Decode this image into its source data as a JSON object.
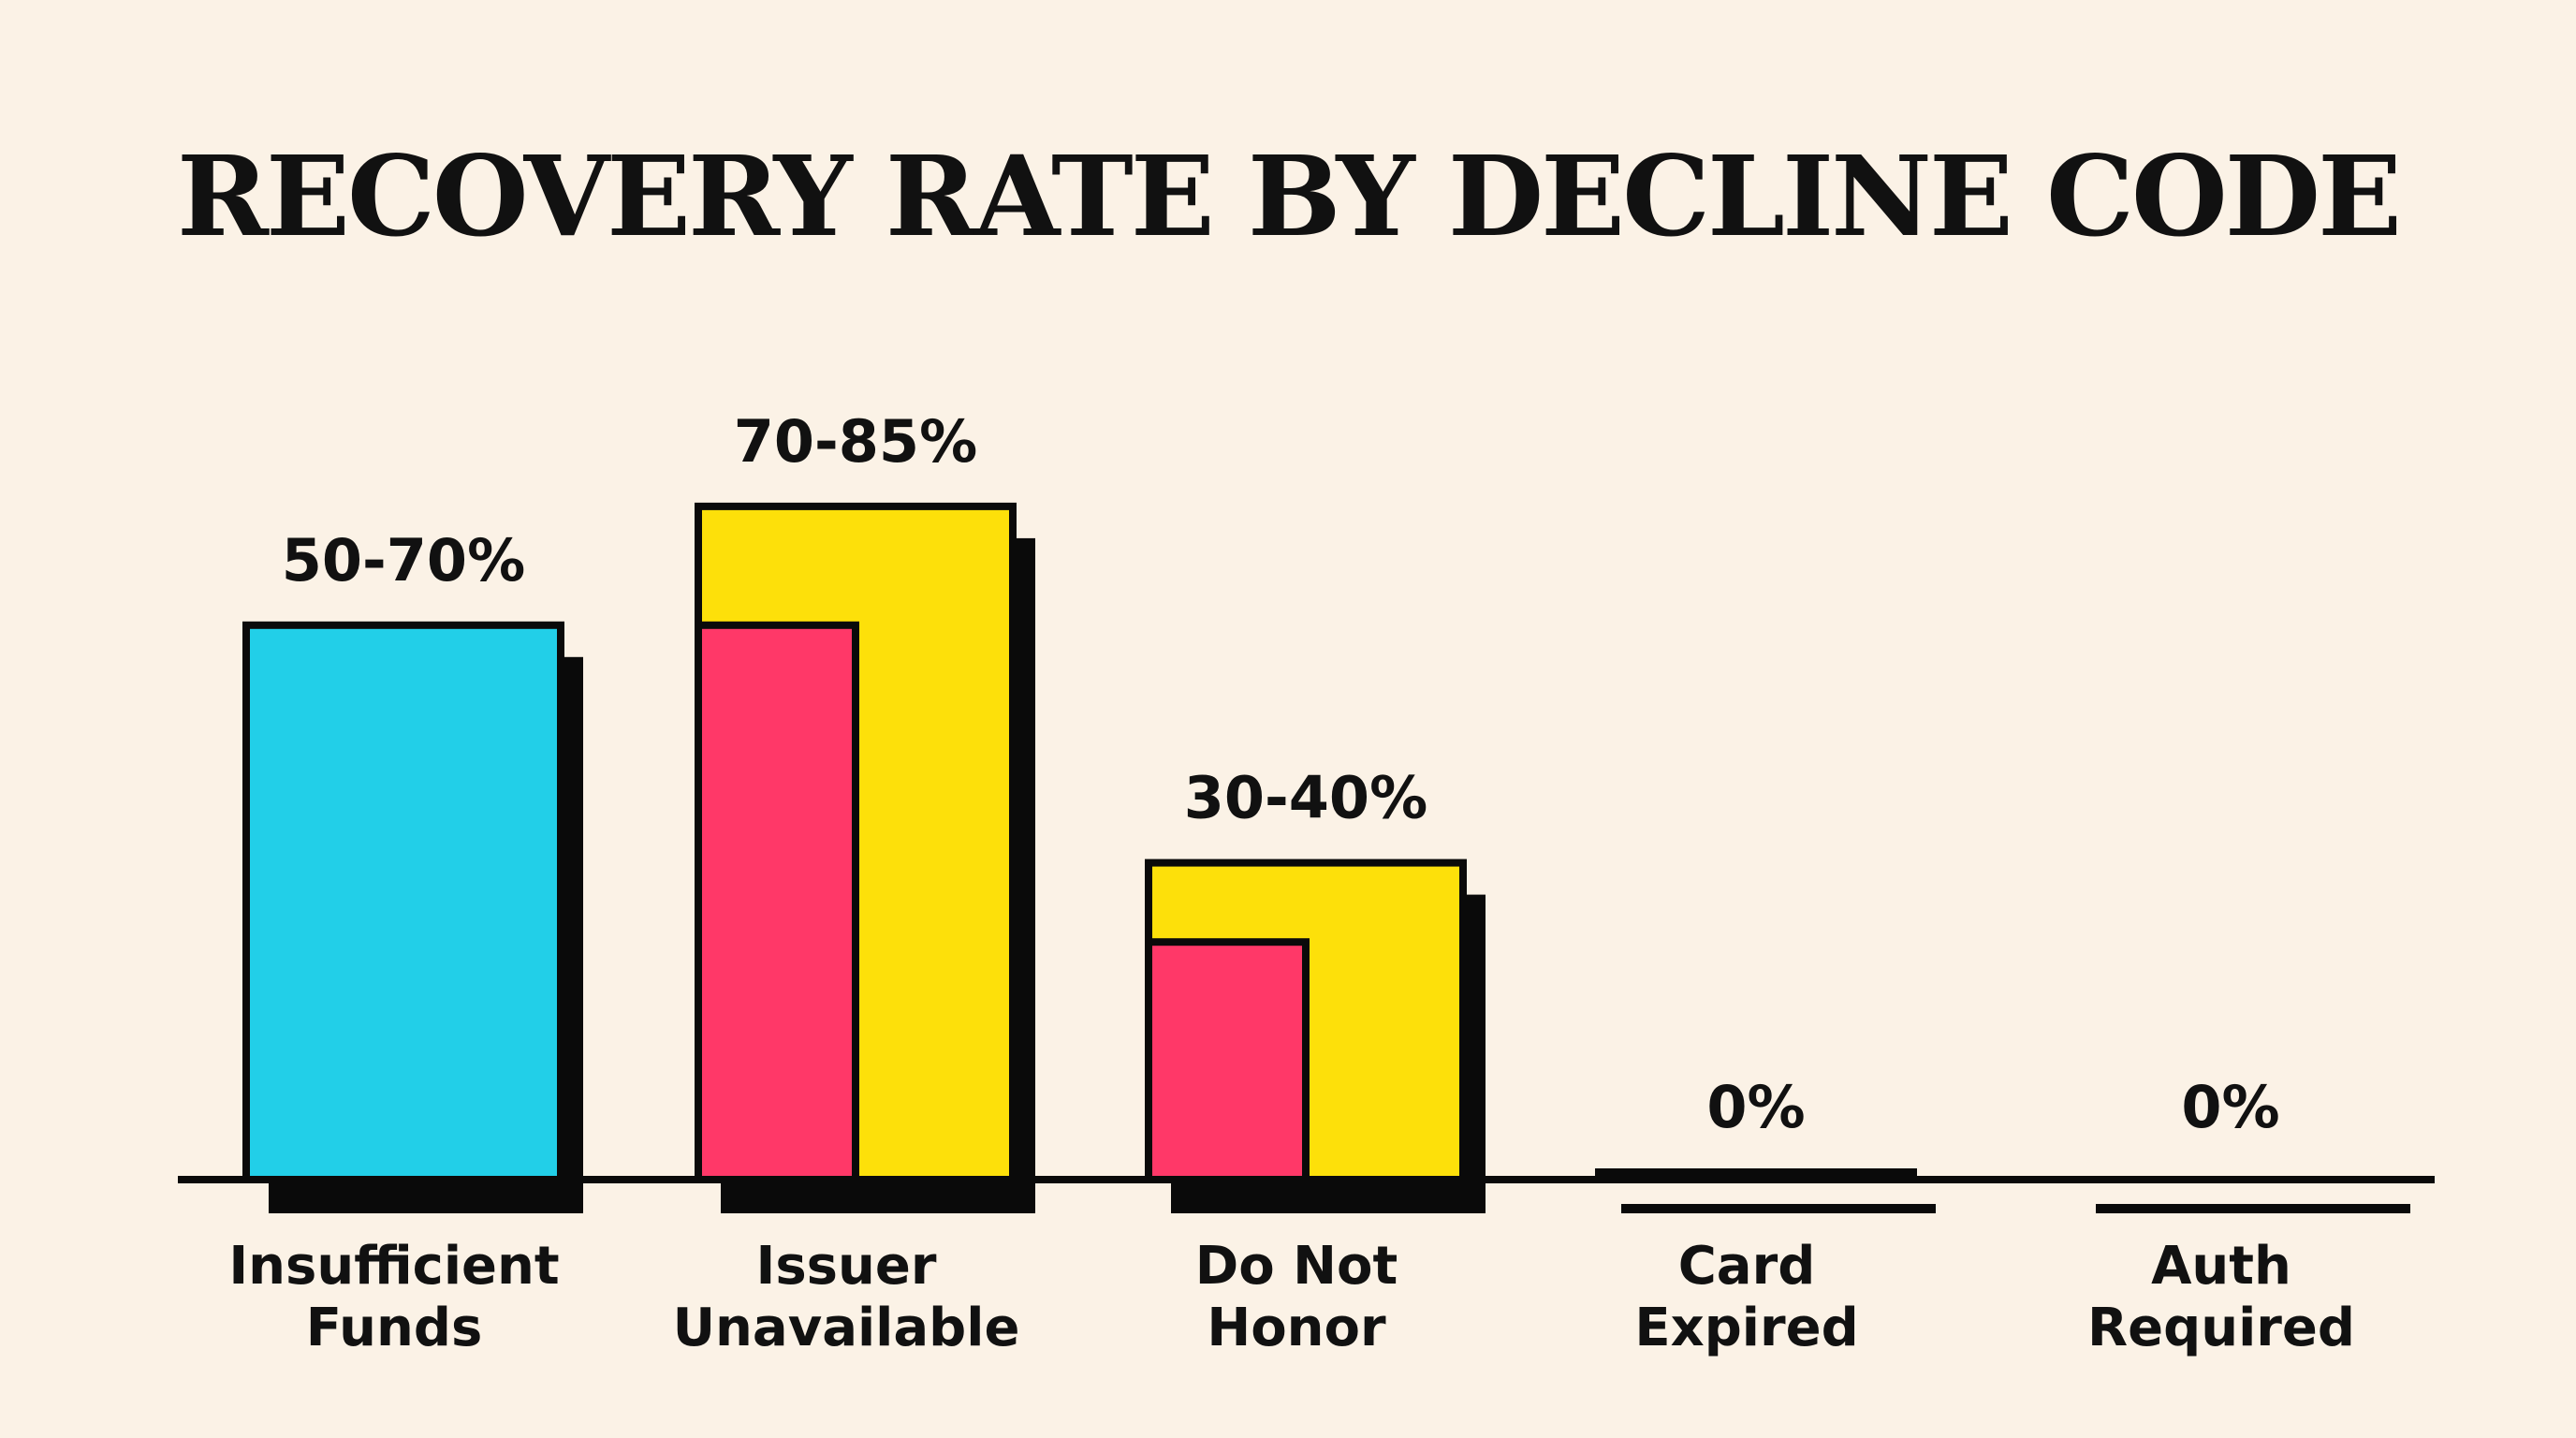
{
  "chart_data": {
    "type": "bar",
    "title": "RECOVERY RATE BY DECLINE CODE",
    "xlabel": "",
    "ylabel": "",
    "ylim": [
      0,
      85
    ],
    "grid": false,
    "categories": [
      [
        "Insufficient",
        "Funds"
      ],
      [
        "Issuer",
        "Unavailable"
      ],
      [
        "Do Not",
        "Honor"
      ],
      [
        "Card",
        "Expired"
      ],
      [
        "Auth",
        "Required"
      ]
    ],
    "ranges": [
      {
        "low": 50,
        "high": 70,
        "label": "50-70%",
        "style": "single"
      },
      {
        "low": 70,
        "high": 85,
        "label": "70-85%",
        "style": "split"
      },
      {
        "low": 30,
        "high": 40,
        "label": "30-40%",
        "style": "split"
      },
      {
        "low": 0,
        "high": 0,
        "label": "0%",
        "style": "split"
      },
      {
        "low": 0,
        "high": 0,
        "label": "0%",
        "style": "none"
      }
    ],
    "colors": {
      "single": "#22CFE8",
      "low": "#FF3868",
      "high": "#FDE00A",
      "outline": "#0A0A0A",
      "background": "#FBF2E6"
    }
  }
}
